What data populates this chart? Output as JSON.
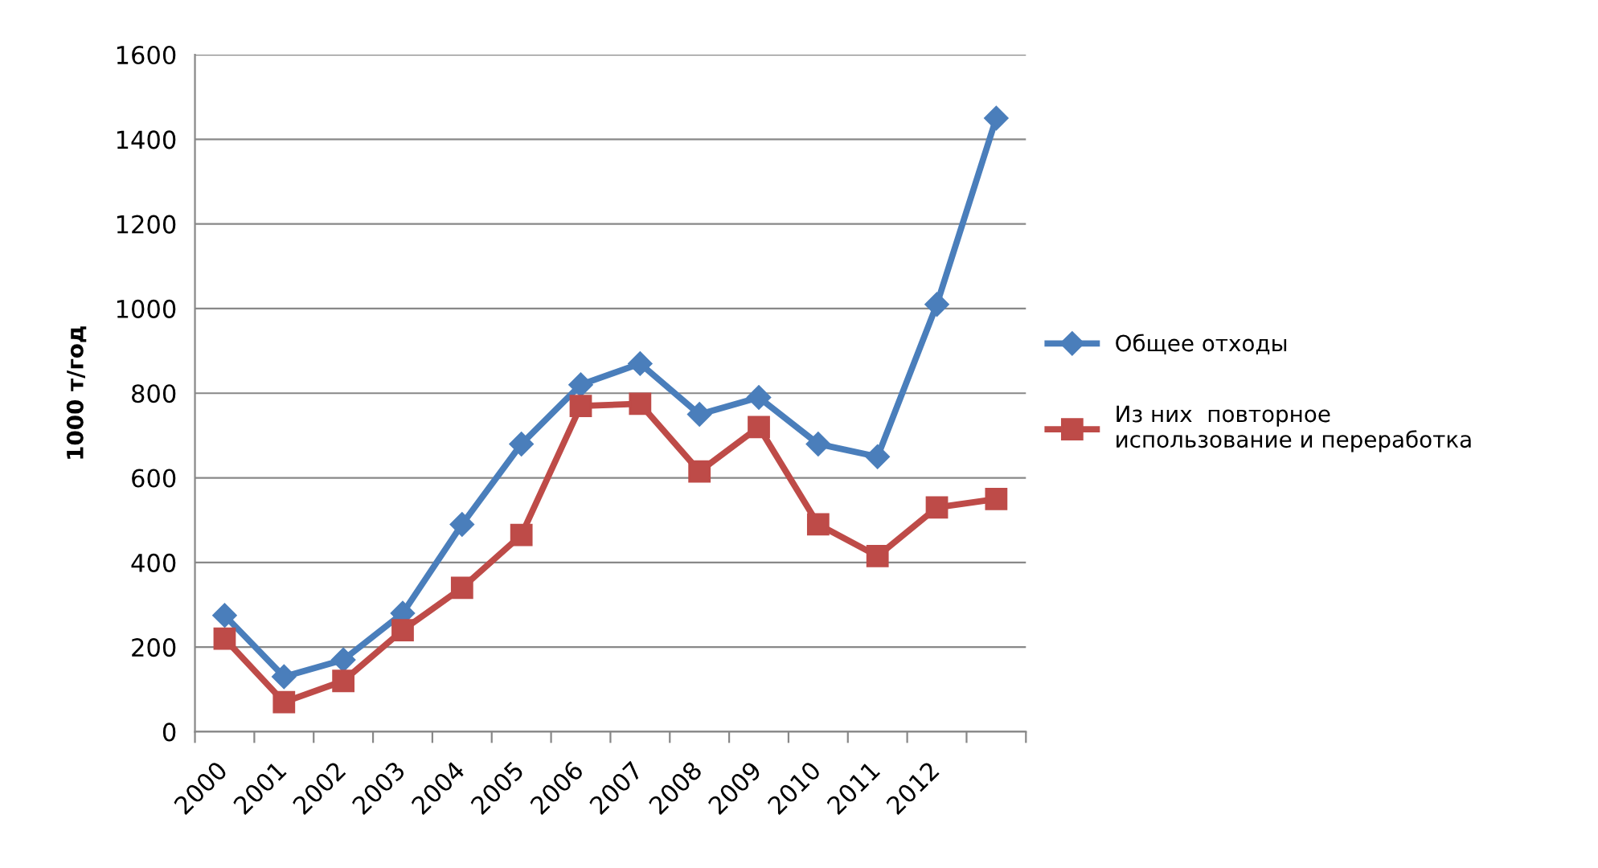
{
  "chart_data": {
    "type": "line",
    "ylabel": "1000 т/год",
    "categories": [
      "2000",
      "2001",
      "2002",
      "2003",
      "2004",
      "2005",
      "2006",
      "2007",
      "2008",
      "2009",
      "2010",
      "2011",
      "2012",
      null
    ],
    "series": [
      {
        "name": "Общее отходы",
        "color": "#4a7ebb",
        "marker": "diamond",
        "values": [
          275,
          130,
          170,
          280,
          490,
          680,
          820,
          870,
          750,
          790,
          680,
          650,
          1010,
          1450
        ]
      },
      {
        "name": "Из них  повторное\nиспользование и переработка",
        "color": "#be4b48",
        "marker": "square",
        "values": [
          220,
          70,
          120,
          240,
          340,
          465,
          770,
          775,
          615,
          720,
          490,
          415,
          530,
          550
        ]
      }
    ],
    "ylim": [
      0,
      1600
    ],
    "yticks": [
      0,
      200,
      400,
      600,
      800,
      1000,
      1200,
      1400,
      1600
    ],
    "grid": "y",
    "legend": "right",
    "line_style": "solid"
  }
}
